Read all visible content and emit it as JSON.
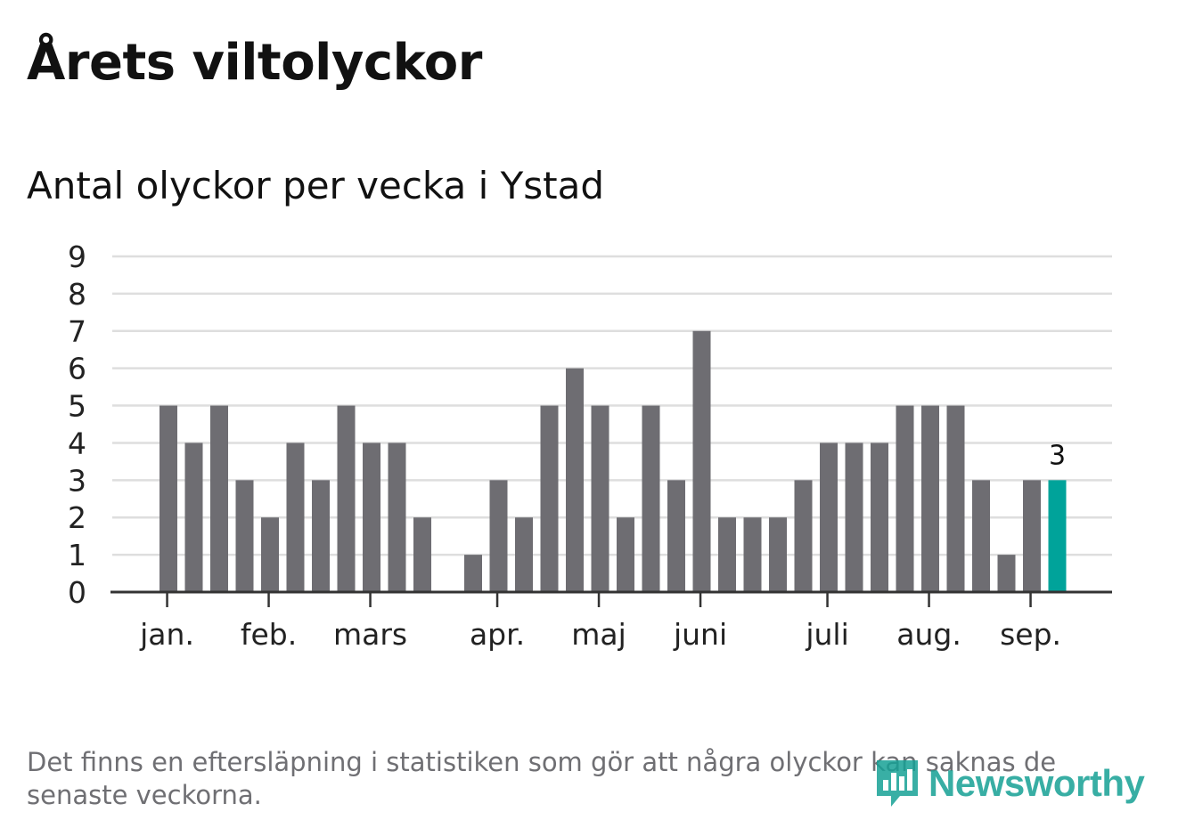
{
  "title": "Årets viltolyckor",
  "subtitle": "Antal olyckor per vecka i Ystad",
  "footnote": "Det finns en eftersläpning i statistiken som gör att några olyckor kan saknas de senaste veckorna.",
  "logo": {
    "text": "Newsworthy",
    "icon": "bar-chart-speech-bubble-icon"
  },
  "colors": {
    "bar": "#6e6d72",
    "highlight": "#00a39a",
    "grid": "#dedede",
    "axis": "#333333",
    "text": "#222222",
    "footnote": "#6f6f73",
    "logo": "#16a195"
  },
  "chart_data": {
    "type": "bar",
    "ylim": [
      0,
      9
    ],
    "yticks": [
      0,
      1,
      2,
      3,
      4,
      5,
      6,
      7,
      8,
      9
    ],
    "grid": true,
    "values": [
      5,
      4,
      5,
      3,
      2,
      4,
      3,
      5,
      4,
      4,
      2,
      0,
      1,
      3,
      2,
      5,
      6,
      5,
      2,
      5,
      3,
      7,
      2,
      2,
      2,
      3,
      4,
      4,
      4,
      5,
      5,
      5,
      3,
      1,
      3,
      3
    ],
    "highlight_index": 35,
    "highlight_label": "3",
    "month_labels": [
      {
        "label": "jan.",
        "bar_index": 0.3
      },
      {
        "label": "feb.",
        "bar_index": 4.3
      },
      {
        "label": "mars",
        "bar_index": 8.3
      },
      {
        "label": "apr.",
        "bar_index": 13.3
      },
      {
        "label": "maj",
        "bar_index": 17.3
      },
      {
        "label": "juni",
        "bar_index": 21.3
      },
      {
        "label": "juli",
        "bar_index": 26.3
      },
      {
        "label": "aug.",
        "bar_index": 30.3
      },
      {
        "label": "sep.",
        "bar_index": 34.3
      }
    ]
  }
}
